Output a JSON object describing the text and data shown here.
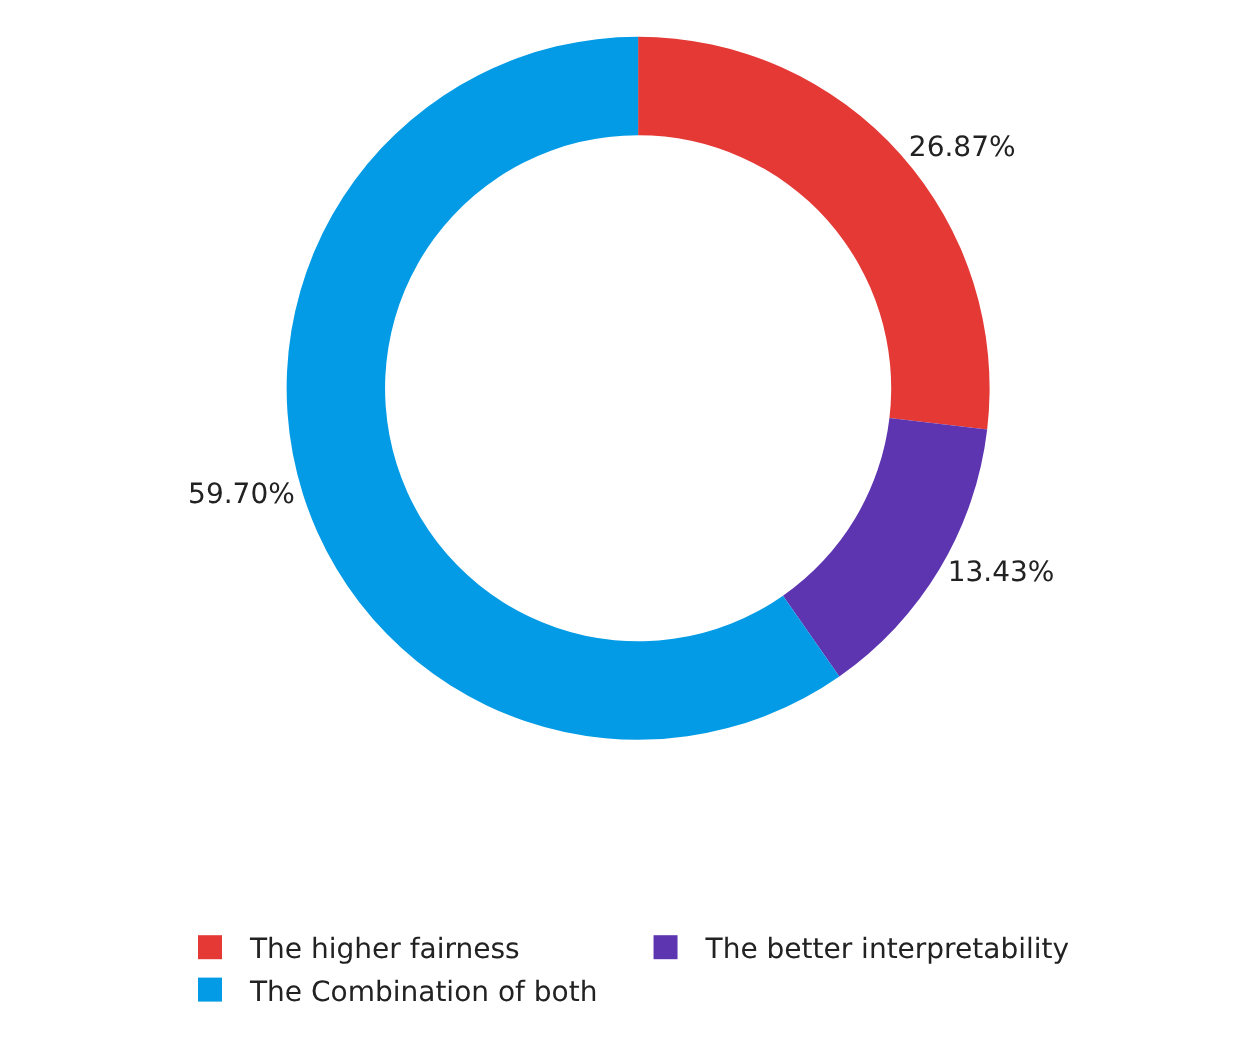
{
  "chart_data": {
    "type": "donut",
    "categories": [
      "The higher fairness",
      "The better interpretability",
      "The Combination of both"
    ],
    "values": [
      26.87,
      13.43,
      59.7
    ],
    "value_labels": [
      "26.87%",
      "13.43%",
      "59.70%"
    ],
    "colors": [
      "#e53935",
      "#5e35b1",
      "#039be5"
    ],
    "legend": "bottom"
  }
}
